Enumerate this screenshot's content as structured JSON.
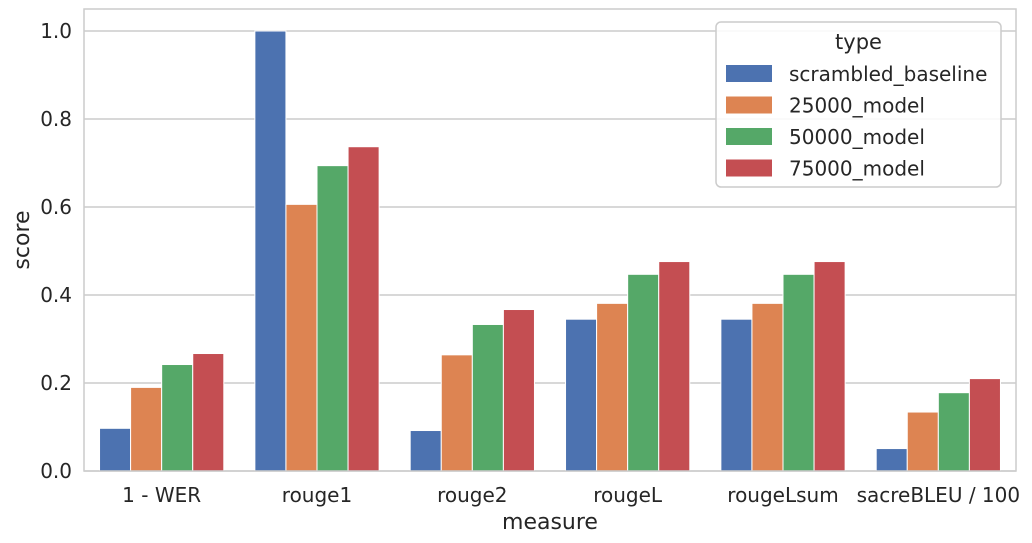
{
  "chart_data": {
    "type": "bar",
    "xlabel": "measure",
    "ylabel": "score",
    "ylim": [
      0,
      1.05
    ],
    "yticks": [
      "0.0",
      "0.2",
      "0.4",
      "0.6",
      "0.8",
      "1.0"
    ],
    "grid": "horizontal",
    "legend": {
      "title": "type",
      "placement": "top-right"
    },
    "categories": [
      "1 - WER",
      "rouge1",
      "rouge2",
      "rougeL",
      "rougeLsum",
      "sacreBLEU / 100"
    ],
    "series": [
      {
        "name": "scrambled_baseline",
        "color": "#4c72b0",
        "values": [
          0.097,
          1.0,
          0.092,
          0.345,
          0.345,
          0.051
        ]
      },
      {
        "name": "25000_model",
        "color": "#dd8452",
        "values": [
          0.19,
          0.606,
          0.264,
          0.381,
          0.381,
          0.134
        ]
      },
      {
        "name": "50000_model",
        "color": "#55a868",
        "values": [
          0.242,
          0.694,
          0.333,
          0.447,
          0.447,
          0.178
        ]
      },
      {
        "name": "75000_model",
        "color": "#c44e52",
        "values": [
          0.267,
          0.737,
          0.367,
          0.476,
          0.476,
          0.21
        ]
      }
    ]
  }
}
